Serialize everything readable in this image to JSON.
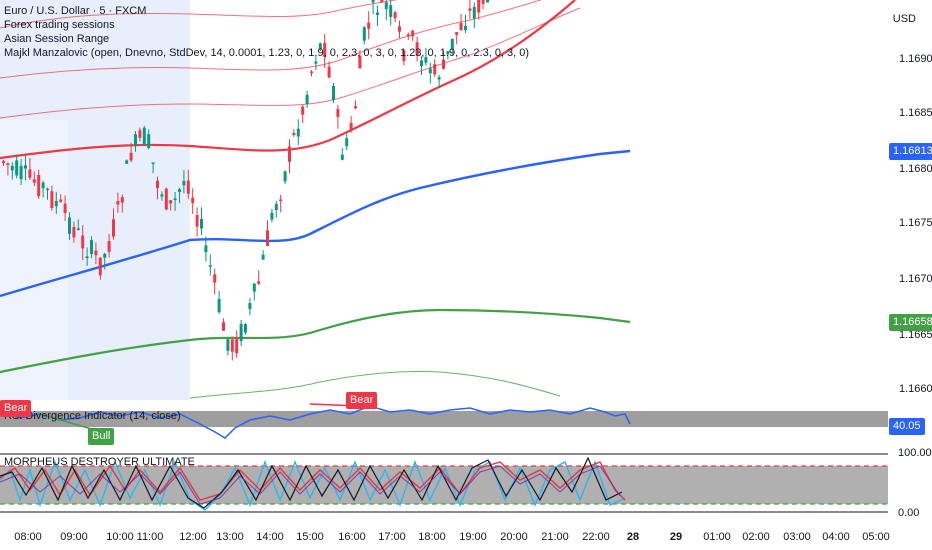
{
  "header": {
    "symbol_line": "Euro / U.S. Dollar · 5 · FXCM",
    "indicators": [
      "Forex trading sessions",
      "Asian Session Range",
      "Majkl Manzalovic (open, Dnevno, StdDev, 14, 0.0001, 1.23, 0, 1.9, 0, 2.3, 0, 3, 0, 1.23, 0, 1.9, 0, 2.3, 0, 3, 0)"
    ],
    "currency": "USD"
  },
  "price_axis": {
    "ticks": [
      "1.16900",
      "1.16850",
      "1.16800",
      "1.16750",
      "1.16700",
      "1.16650",
      "1.16600"
    ],
    "blue_tag": "1.16813",
    "green_tag": "1.16658",
    "colors": {
      "blue": "#2962ff",
      "green": "#43a047"
    }
  },
  "time_axis": {
    "ticks": [
      "08:00",
      "09:00",
      "10:00",
      "11:00",
      "12:00",
      "13:00",
      "14:00",
      "15:00",
      "16:00",
      "17:00",
      "18:00",
      "19:00",
      "20:00",
      "21:00",
      "22:00",
      "28",
      "29",
      "01:00",
      "02:00",
      "03:00",
      "04:00",
      "05:00"
    ]
  },
  "rsi_pane": {
    "title": "RSI Divergence Indicator (14, close)",
    "value_tag": "40.05",
    "bear_label": "Bear",
    "bull_label": "Bull",
    "colors": {
      "line": "#2962ff",
      "bear": "#f23645",
      "bull": "#43a047"
    }
  },
  "stoch_pane": {
    "title": "MORPHEUS DESTROYER ULTIMATE",
    "ticks": [
      "100.00",
      "0.00"
    ]
  },
  "chart_data": {
    "type": "candlestick",
    "series": [
      {
        "name": "",
        "color": "#2962ff",
        "values": [
          1.167,
          1.16735,
          1.16748,
          1.16745,
          1.16762,
          1.1679,
          1.16813
        ]
      },
      {
        "name": "",
        "color": "#43a047",
        "values": [
          1.1663,
          1.16655,
          1.16668,
          1.16672,
          1.16668,
          1.16658
        ]
      }
    ],
    "ylim": [
      1.16585,
      1.16945
    ]
  }
}
